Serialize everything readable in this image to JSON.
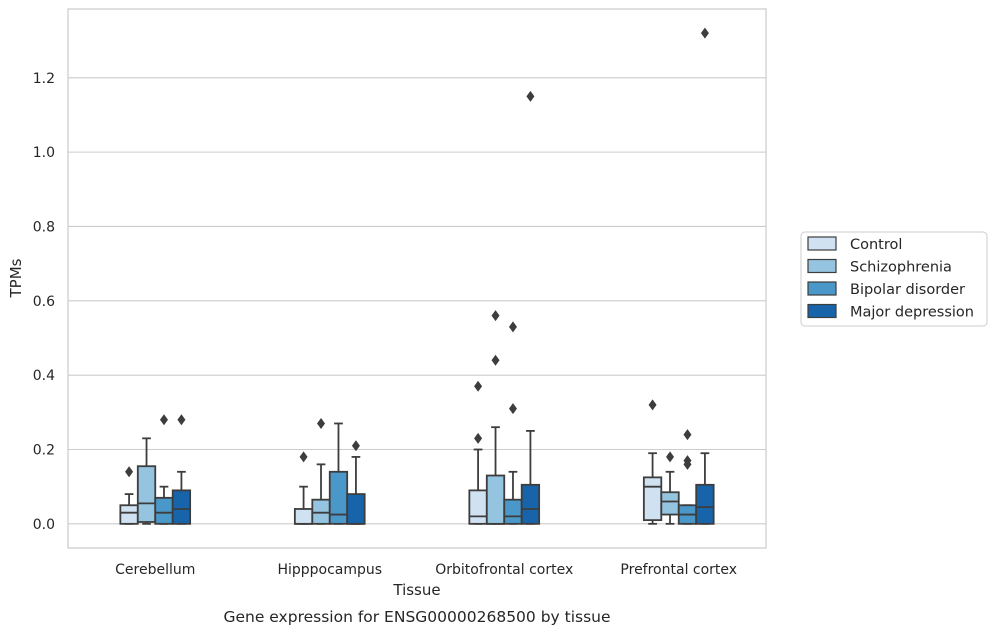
{
  "chart_data": {
    "type": "box",
    "title": "",
    "caption": "Gene expression for ENSG00000268500 by tissue",
    "xlabel": "Tissue",
    "ylabel": "TPMs",
    "ylim": [
      -0.065,
      1.385
    ],
    "yticks": [
      0.0,
      0.2,
      0.4,
      0.6,
      0.8,
      1.0,
      1.2
    ],
    "ytick_labels": [
      "0.0",
      "0.2",
      "0.4",
      "0.6",
      "0.8",
      "1.0",
      "1.2"
    ],
    "grid": "horizontal",
    "legend_position": "right, outside plot",
    "categories": [
      "Cerebellum",
      "Hipppocampus",
      "Orbitofrontal cortex",
      "Prefrontal cortex"
    ],
    "series": [
      {
        "name": "Control",
        "color": "#d0e1f2",
        "boxes": [
          {
            "whisker_low": 0.0,
            "q1": 0.0,
            "median": 0.03,
            "q3": 0.05,
            "whisker_high": 0.08,
            "outliers": [
              0.14
            ]
          },
          {
            "whisker_low": 0.0,
            "q1": 0.0,
            "median": 0.0,
            "q3": 0.04,
            "whisker_high": 0.1,
            "outliers": [
              0.18
            ]
          },
          {
            "whisker_low": 0.0,
            "q1": 0.0,
            "median": 0.02,
            "q3": 0.09,
            "whisker_high": 0.2,
            "outliers": [
              0.23,
              0.37
            ]
          },
          {
            "whisker_low": 0.0,
            "q1": 0.01,
            "median": 0.1,
            "q3": 0.125,
            "whisker_high": 0.19,
            "outliers": [
              0.32
            ]
          }
        ]
      },
      {
        "name": "Schizophrenia",
        "color": "#94c4df",
        "boxes": [
          {
            "whisker_low": 0.0,
            "q1": 0.005,
            "median": 0.055,
            "q3": 0.155,
            "whisker_high": 0.23,
            "outliers": []
          },
          {
            "whisker_low": 0.0,
            "q1": 0.0,
            "median": 0.03,
            "q3": 0.065,
            "whisker_high": 0.16,
            "outliers": [
              0.27
            ]
          },
          {
            "whisker_low": 0.0,
            "q1": 0.0,
            "median": 0.0,
            "q3": 0.13,
            "whisker_high": 0.26,
            "outliers": [
              0.44,
              0.56
            ]
          },
          {
            "whisker_low": 0.0,
            "q1": 0.025,
            "median": 0.06,
            "q3": 0.085,
            "whisker_high": 0.14,
            "outliers": [
              0.18
            ]
          }
        ]
      },
      {
        "name": "Bipolar disorder",
        "color": "#4a98c9",
        "boxes": [
          {
            "whisker_low": 0.0,
            "q1": 0.0,
            "median": 0.03,
            "q3": 0.07,
            "whisker_high": 0.1,
            "outliers": [
              0.28
            ]
          },
          {
            "whisker_low": 0.0,
            "q1": 0.0,
            "median": 0.025,
            "q3": 0.14,
            "whisker_high": 0.27,
            "outliers": []
          },
          {
            "whisker_low": 0.0,
            "q1": 0.0,
            "median": 0.02,
            "q3": 0.065,
            "whisker_high": 0.14,
            "outliers": [
              0.31,
              0.53
            ]
          },
          {
            "whisker_low": 0.0,
            "q1": 0.0,
            "median": 0.025,
            "q3": 0.05,
            "whisker_high": 0.05,
            "outliers": [
              0.16,
              0.17,
              0.24
            ]
          }
        ]
      },
      {
        "name": "Major depression",
        "color": "#1764ab",
        "boxes": [
          {
            "whisker_low": 0.0,
            "q1": 0.0,
            "median": 0.04,
            "q3": 0.09,
            "whisker_high": 0.14,
            "outliers": [
              0.28
            ]
          },
          {
            "whisker_low": 0.0,
            "q1": 0.0,
            "median": 0.0,
            "q3": 0.08,
            "whisker_high": 0.18,
            "outliers": [
              0.21
            ]
          },
          {
            "whisker_low": 0.0,
            "q1": 0.0,
            "median": 0.04,
            "q3": 0.105,
            "whisker_high": 0.25,
            "outliers": [
              1.15
            ]
          },
          {
            "whisker_low": 0.0,
            "q1": 0.0,
            "median": 0.045,
            "q3": 0.105,
            "whisker_high": 0.19,
            "outliers": [
              1.32
            ]
          }
        ]
      }
    ]
  }
}
